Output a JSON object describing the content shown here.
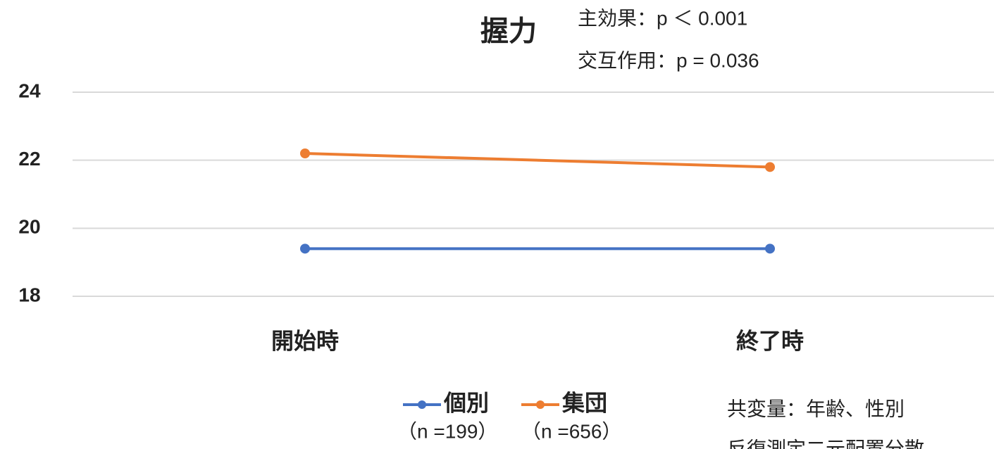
{
  "chart_data": {
    "type": "line",
    "title": "握力",
    "annotations": [
      "主効果：p ＜ 0.001",
      "交互作用：p = 0.036"
    ],
    "categories": [
      "開始時",
      "終了時"
    ],
    "series": [
      {
        "name": "個別",
        "color": "#4472c4",
        "values": [
          19.4,
          19.4
        ]
      },
      {
        "name": "集団",
        "color": "#ed7d31",
        "values": [
          22.2,
          21.8
        ]
      }
    ],
    "legend_notes": [
      "（n =199）",
      "（n =656）"
    ],
    "notes": [
      "共変量：年齢、性別",
      "反復測定二元配置分散"
    ],
    "ylim": [
      18,
      24
    ],
    "yticks": [
      18,
      20,
      22,
      24
    ],
    "grid": true,
    "legend": "bottom"
  }
}
